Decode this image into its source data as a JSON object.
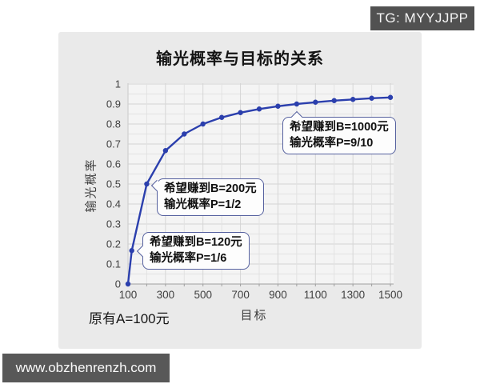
{
  "badge": {
    "text": "TG: MYYJJPP"
  },
  "watermark": {
    "text": "www.obzhenrenzh.com"
  },
  "footer": {
    "origin_label": "原有A=100元"
  },
  "chart_data": {
    "type": "line",
    "title": "输光概率与目标的关系",
    "xlabel": "目标",
    "ylabel": "输光概率",
    "x": [
      100,
      120,
      200,
      300,
      400,
      500,
      600,
      700,
      800,
      900,
      1000,
      1100,
      1200,
      1300,
      1400,
      1500
    ],
    "y": [
      0,
      0.167,
      0.5,
      0.667,
      0.75,
      0.8,
      0.833,
      0.857,
      0.875,
      0.889,
      0.9,
      0.909,
      0.917,
      0.923,
      0.929,
      0.933
    ],
    "xlim": [
      100,
      1517
    ],
    "ylim": [
      0,
      1
    ],
    "x_ticks": [
      100,
      300,
      500,
      700,
      900,
      1100,
      1300,
      1500
    ],
    "y_ticks": [
      "0",
      "0.1",
      "0.2",
      "0.3",
      "0.4",
      "0.5",
      "0.6",
      "0.7",
      "0.8",
      "0.9",
      "1"
    ],
    "grid": true,
    "legend_position": "none",
    "line_color": "#2b3fad",
    "marker_color": "#2b3fad",
    "annotations": [
      {
        "line1": "希望赚到B=120元",
        "line2": "输光概率P=1/6",
        "target_x": 120,
        "target_y": 0.167
      },
      {
        "line1": "希望赚到B=200元",
        "line2": "输光概率P=1/2",
        "target_x": 200,
        "target_y": 0.5
      },
      {
        "line1": "希望赚到B=1000元",
        "line2": "输光概率P=9/10",
        "target_x": 1000,
        "target_y": 0.9
      }
    ]
  }
}
